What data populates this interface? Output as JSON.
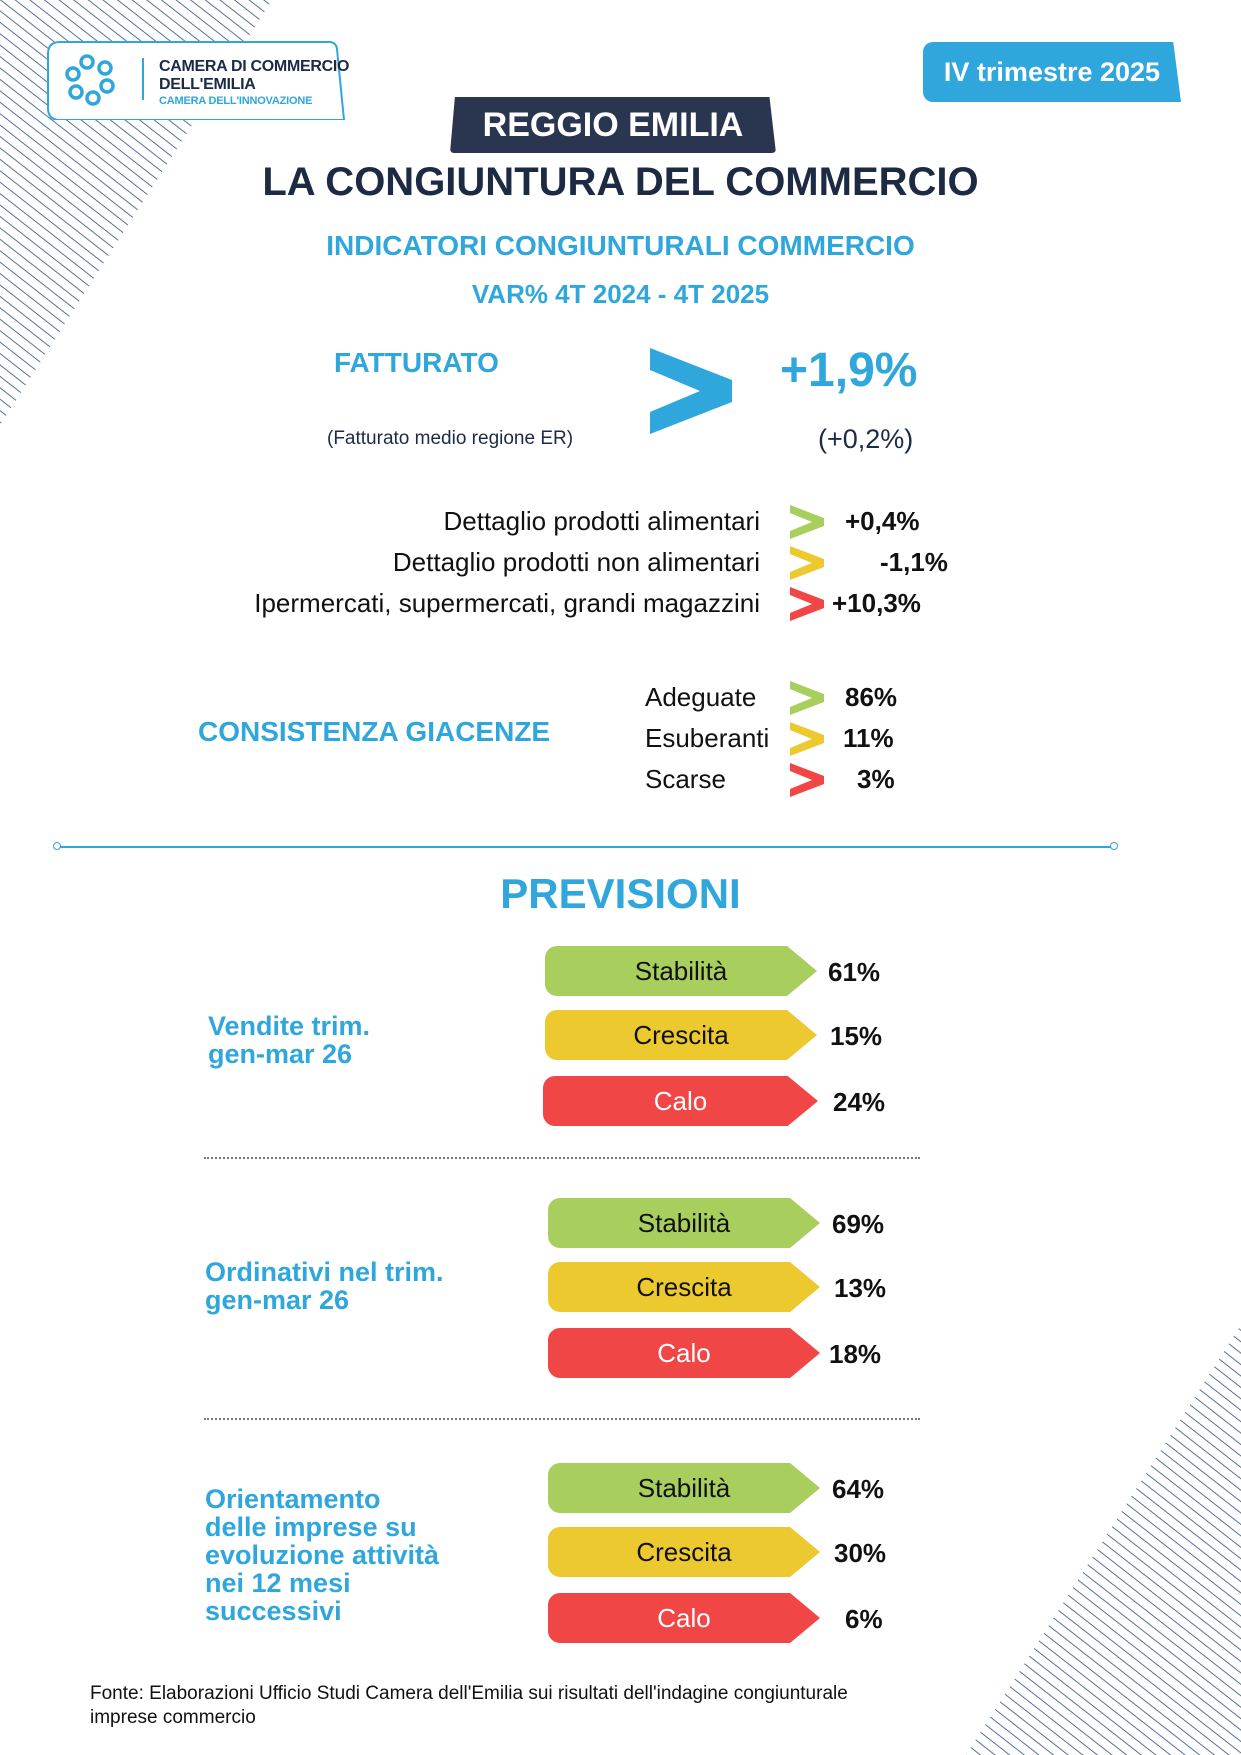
{
  "header": {
    "logo_line1": "CAMERA DI COMMERCIO",
    "logo_line2": "DELL'EMILIA",
    "logo_line3": "CAMERA DELL'INNOVAZIONE",
    "quarter": "IV trimestre 2025",
    "region": "REGGIO EMILIA",
    "title": "LA CONGIUNTURA DEL COMMERCIO",
    "subtitle1": "INDICATORI CONGIUNTURALI COMMERCIO",
    "subtitle2": "VAR% 4T 2024 - 4T 2025"
  },
  "fatturato": {
    "label": "FATTURATO",
    "value": "+1,9%",
    "note": "(Fatturato medio regione ER)",
    "regional_value": "(+0,2%)"
  },
  "sectors": [
    {
      "label": "Dettaglio prodotti alimentari",
      "value": "+0,4%",
      "color": "#a8cf5e"
    },
    {
      "label": "Dettaglio prodotti non alimentari",
      "value": "-1,1%",
      "color": "#ecc92f"
    },
    {
      "label": "Ipermercati, supermercati, grandi magazzini",
      "value": "+10,3%",
      "color": "#f04646"
    }
  ],
  "giacenze": {
    "label": "CONSISTENZA GIACENZE",
    "items": [
      {
        "label": "Adeguate",
        "value": "86%",
        "color": "#a8cf5e"
      },
      {
        "label": "Esuberanti",
        "value": "11%",
        "color": "#ecc92f"
      },
      {
        "label": "Scarse",
        "value": "3%",
        "color": "#f04646"
      }
    ]
  },
  "previsioni": {
    "title": "PREVISIONI",
    "groups": [
      {
        "label_lines": [
          "Vendite trim.",
          "gen-mar 26"
        ],
        "items": [
          {
            "label": "Stabilità",
            "value": "61%"
          },
          {
            "label": "Crescita",
            "value": "15%"
          },
          {
            "label": "Calo",
            "value": "24%"
          }
        ]
      },
      {
        "label_lines": [
          "Ordinativi nel trim.",
          "gen-mar 26"
        ],
        "items": [
          {
            "label": "Stabilità",
            "value": "69%"
          },
          {
            "label": "Crescita",
            "value": "13%"
          },
          {
            "label": "Calo",
            "value": "18%"
          }
        ]
      },
      {
        "label_lines": [
          "Orientamento",
          "delle imprese su",
          "evoluzione attività",
          "nei 12 mesi",
          "successivi"
        ],
        "items": [
          {
            "label": "Stabilità",
            "value": "64%"
          },
          {
            "label": "Crescita",
            "value": "30%"
          },
          {
            "label": "Calo",
            "value": "6%"
          }
        ]
      }
    ]
  },
  "footer": {
    "line1": "Fonte: Elaborazioni Ufficio Studi Camera dell'Emilia sui risultati dell'indagine congiunturale",
    "line2": "imprese commercio"
  },
  "colors": {
    "accent": "#2fa6dc",
    "navy": "#1d2a44",
    "green": "#a8cf5e",
    "yellow": "#ecc92f",
    "red": "#f04646"
  }
}
